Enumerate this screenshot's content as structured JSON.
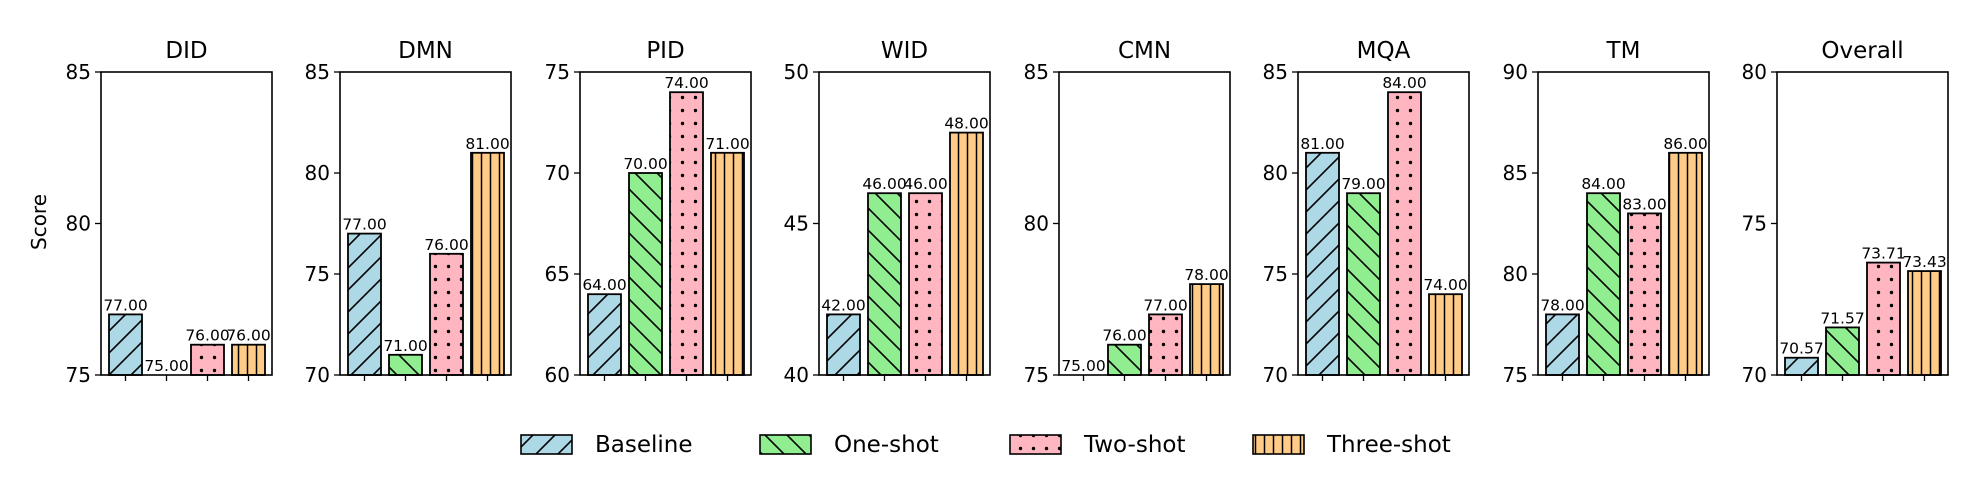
{
  "chart_data": {
    "type": "bar",
    "ylabel": "Score",
    "legend_position": "bottom-center",
    "grid": false,
    "series": [
      {
        "name": "Baseline",
        "color": "#add8e6",
        "hatch": "diagonal-up"
      },
      {
        "name": "One-shot",
        "color": "#90ee90",
        "hatch": "diagonal-down"
      },
      {
        "name": "Two-shot",
        "color": "#ffb6c1",
        "hatch": "dots"
      },
      {
        "name": "Three-shot",
        "color": "#ffcc88",
        "hatch": "vertical"
      }
    ],
    "panels": [
      {
        "title": "DID",
        "ylim": [
          75,
          85
        ],
        "yticks": [
          "75",
          "80",
          "85"
        ],
        "values": [
          77.0,
          75.0,
          76.0,
          76.0
        ],
        "labels": [
          "77.00",
          "75.00",
          "76.00",
          "76.00"
        ]
      },
      {
        "title": "DMN",
        "ylim": [
          70,
          85
        ],
        "yticks": [
          "70",
          "75",
          "80",
          "85"
        ],
        "values": [
          77.0,
          71.0,
          76.0,
          81.0
        ],
        "labels": [
          "77.00",
          "71.00",
          "76.00",
          "81.00"
        ]
      },
      {
        "title": "PID",
        "ylim": [
          60,
          75
        ],
        "yticks": [
          "60",
          "65",
          "70",
          "75"
        ],
        "values": [
          64.0,
          70.0,
          74.0,
          71.0
        ],
        "labels": [
          "64.00",
          "70.00",
          "74.00",
          "71.00"
        ]
      },
      {
        "title": "WID",
        "ylim": [
          40,
          50
        ],
        "yticks": [
          "40",
          "45",
          "50"
        ],
        "values": [
          42.0,
          46.0,
          46.0,
          48.0
        ],
        "labels": [
          "42.00",
          "46.00",
          "46.00",
          "48.00"
        ]
      },
      {
        "title": "CMN",
        "ylim": [
          75,
          85
        ],
        "yticks": [
          "75",
          "80",
          "85"
        ],
        "values": [
          75.0,
          76.0,
          77.0,
          78.0
        ],
        "labels": [
          "75.00",
          "76.00",
          "77.00",
          "78.00"
        ]
      },
      {
        "title": "MQA",
        "ylim": [
          70,
          85
        ],
        "yticks": [
          "70",
          "75",
          "80",
          "85"
        ],
        "values": [
          81.0,
          79.0,
          84.0,
          74.0
        ],
        "labels": [
          "81.00",
          "79.00",
          "84.00",
          "74.00"
        ]
      },
      {
        "title": "TM",
        "ylim": [
          75,
          90
        ],
        "yticks": [
          "75",
          "80",
          "85",
          "90"
        ],
        "values": [
          78.0,
          84.0,
          83.0,
          86.0
        ],
        "labels": [
          "78.00",
          "84.00",
          "83.00",
          "86.00"
        ]
      },
      {
        "title": "Overall",
        "ylim": [
          70,
          80
        ],
        "yticks": [
          "70",
          "75",
          "80"
        ],
        "values": [
          70.57,
          71.57,
          73.71,
          73.43
        ],
        "labels": [
          "70.57",
          "71.57",
          "73.71",
          "73.43"
        ]
      }
    ]
  }
}
